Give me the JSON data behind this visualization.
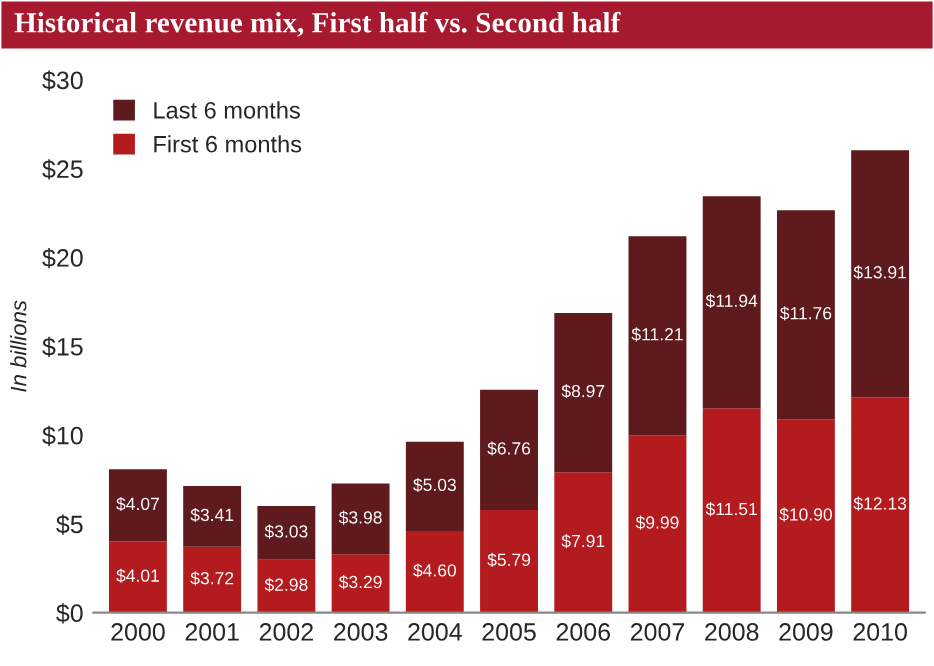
{
  "chart_data": {
    "type": "bar",
    "stacked": true,
    "title": "Historical revenue mix, First half vs. Second half",
    "ylabel": "In billions",
    "categories": [
      "2000",
      "2001",
      "2002",
      "2003",
      "2004",
      "2005",
      "2006",
      "2007",
      "2008",
      "2009",
      "2010"
    ],
    "series": [
      {
        "name": "First 6 months",
        "color": "#b31b1f",
        "values": [
          4.01,
          3.72,
          2.98,
          3.29,
          4.6,
          5.79,
          7.91,
          9.99,
          11.51,
          10.9,
          12.13
        ],
        "value_labels": [
          "$4.01",
          "$3.72",
          "$2.98",
          "$3.29",
          "$4.60",
          "$5.79",
          "$7.91",
          "$9.99",
          "$11.51",
          "$10.90",
          "$12.13"
        ]
      },
      {
        "name": "Last 6 months",
        "color": "#5e1a1c",
        "values": [
          4.07,
          3.41,
          3.03,
          3.98,
          5.03,
          6.76,
          8.97,
          11.21,
          11.94,
          11.76,
          13.91
        ],
        "value_labels": [
          "$4.07",
          "$3.41",
          "$3.03",
          "$3.98",
          "$5.03",
          "$6.76",
          "$8.97",
          "$11.21",
          "$11.94",
          "$11.76",
          "$13.91"
        ]
      }
    ],
    "ylim": [
      0,
      30
    ],
    "yticks": [
      {
        "value": 0,
        "label": "$0"
      },
      {
        "value": 5,
        "label": "$5"
      },
      {
        "value": 10,
        "label": "$10"
      },
      {
        "value": 15,
        "label": "$15"
      },
      {
        "value": 20,
        "label": "$20"
      },
      {
        "value": 25,
        "label": "$25"
      },
      {
        "value": 30,
        "label": "$30"
      }
    ],
    "grid": false,
    "legend": "top left"
  }
}
